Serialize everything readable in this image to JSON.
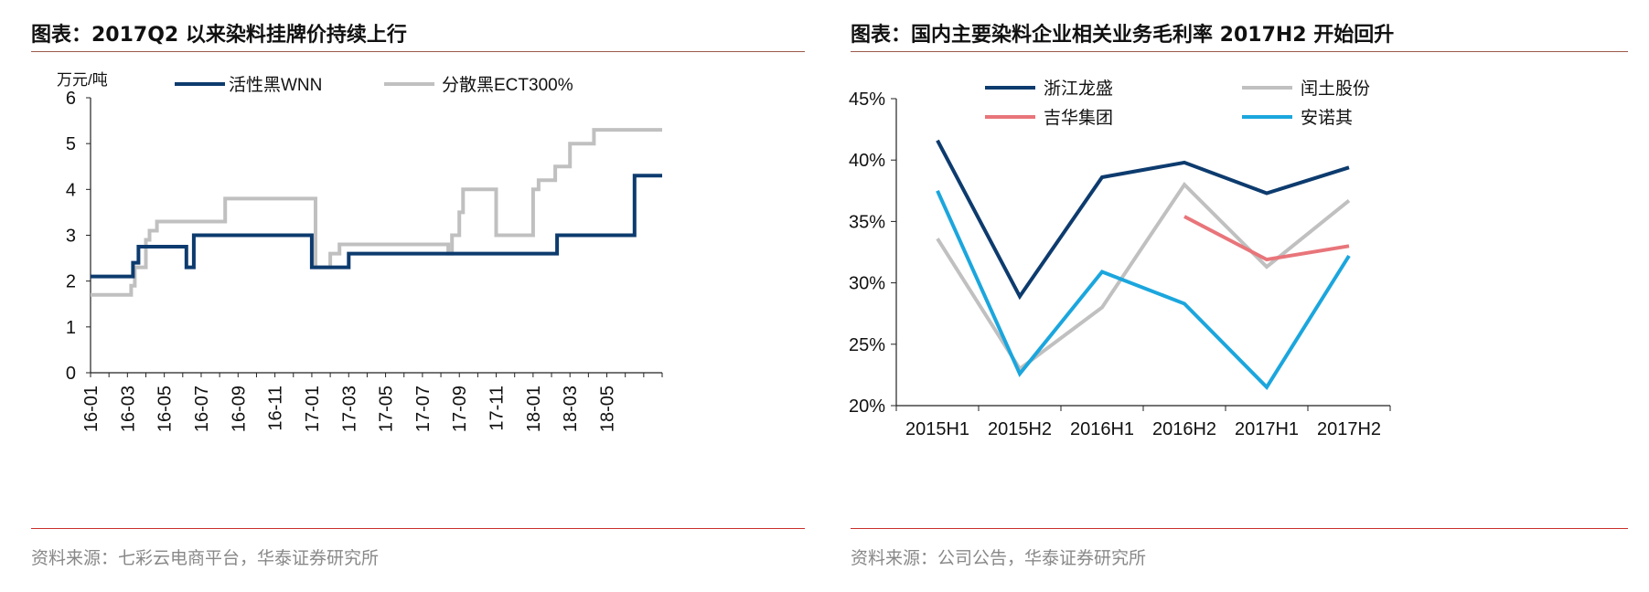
{
  "left": {
    "title": "图表：2017Q2 以来染料挂牌价持续上行",
    "source": "资料来源：七彩云电商平台，华泰证券研究所"
  },
  "right": {
    "title": "图表：国内主要染料企业相关业务毛利率 2017H2 开始回升",
    "source": "资料来源：公司公告，华泰证券研究所"
  },
  "chart_data": [
    {
      "type": "line",
      "step": true,
      "title": "图表：2017Q2 以来染料挂牌价持续上行",
      "unit_label": "万元/吨",
      "ylim": [
        0,
        6
      ],
      "yticks": [
        "0",
        "1",
        "2",
        "3",
        "4",
        "5",
        "6"
      ],
      "xlim_month_index": [
        0,
        31
      ],
      "xticks": [
        "16-01",
        "16-03",
        "16-05",
        "16-07",
        "16-09",
        "16-11",
        "17-01",
        "17-03",
        "17-05",
        "17-07",
        "17-09",
        "17-11",
        "18-01",
        "18-03",
        "18-05"
      ],
      "legend_position": "top",
      "series": [
        {
          "name": "活性黑WNN",
          "color": "#0d3b6e",
          "points": [
            [
              0,
              2.1
            ],
            [
              2.3,
              2.1
            ],
            [
              2.3,
              2.4
            ],
            [
              2.6,
              2.4
            ],
            [
              2.6,
              2.75
            ],
            [
              5.2,
              2.75
            ],
            [
              5.2,
              2.3
            ],
            [
              5.6,
              2.3
            ],
            [
              5.6,
              3.0
            ],
            [
              12.0,
              3.0
            ],
            [
              12.0,
              2.3
            ],
            [
              14.0,
              2.3
            ],
            [
              14.0,
              2.6
            ],
            [
              25.3,
              2.6
            ],
            [
              25.3,
              3.0
            ],
            [
              29.5,
              3.0
            ],
            [
              29.5,
              4.3
            ],
            [
              31.0,
              4.3
            ]
          ]
        },
        {
          "name": "分散黑ECT300%",
          "color": "#c0c0c0",
          "points": [
            [
              0,
              1.7
            ],
            [
              2.2,
              1.7
            ],
            [
              2.2,
              1.9
            ],
            [
              2.4,
              1.9
            ],
            [
              2.4,
              2.3
            ],
            [
              3.0,
              2.3
            ],
            [
              3.0,
              2.9
            ],
            [
              3.2,
              2.9
            ],
            [
              3.2,
              3.1
            ],
            [
              3.6,
              3.1
            ],
            [
              3.6,
              3.3
            ],
            [
              7.3,
              3.3
            ],
            [
              7.3,
              3.8
            ],
            [
              12.2,
              3.8
            ],
            [
              12.2,
              2.3
            ],
            [
              13.0,
              2.3
            ],
            [
              13.0,
              2.6
            ],
            [
              13.5,
              2.6
            ],
            [
              13.5,
              2.8
            ],
            [
              19.4,
              2.8
            ],
            [
              19.4,
              2.6
            ],
            [
              19.6,
              2.6
            ],
            [
              19.6,
              3.0
            ],
            [
              20.0,
              3.0
            ],
            [
              20.0,
              3.5
            ],
            [
              20.2,
              3.5
            ],
            [
              20.2,
              4.0
            ],
            [
              22.0,
              4.0
            ],
            [
              22.0,
              3.0
            ],
            [
              24.0,
              3.0
            ],
            [
              24.0,
              4.0
            ],
            [
              24.3,
              4.0
            ],
            [
              24.3,
              4.2
            ],
            [
              25.2,
              4.2
            ],
            [
              25.2,
              4.5
            ],
            [
              26.0,
              4.5
            ],
            [
              26.0,
              5.0
            ],
            [
              27.3,
              5.0
            ],
            [
              27.3,
              5.3
            ],
            [
              31.0,
              5.3
            ]
          ]
        }
      ]
    },
    {
      "type": "line",
      "title": "图表：国内主要染料企业相关业务毛利率 2017H2 开始回升",
      "categories": [
        "2015H1",
        "2015H2",
        "2016H1",
        "2016H2",
        "2017H1",
        "2017H2"
      ],
      "ylim": [
        20,
        45
      ],
      "yticks": [
        "20%",
        "25%",
        "30%",
        "35%",
        "40%",
        "45%"
      ],
      "legend_position": "top",
      "series": [
        {
          "name": "浙江龙盛",
          "color": "#0d3b6e",
          "values": [
            41.6,
            28.9,
            38.6,
            39.8,
            37.3,
            39.4
          ]
        },
        {
          "name": "闰土股份",
          "color": "#c0c0c0",
          "values": [
            33.6,
            23.0,
            28.0,
            38.0,
            31.3,
            36.7
          ]
        },
        {
          "name": "吉华集团",
          "color": "#e8757a",
          "values": [
            null,
            null,
            null,
            35.4,
            31.9,
            33.0
          ]
        },
        {
          "name": "安诺其",
          "color": "#1ba6dd",
          "values": [
            37.5,
            22.6,
            30.9,
            28.3,
            21.5,
            32.2
          ]
        }
      ]
    }
  ]
}
